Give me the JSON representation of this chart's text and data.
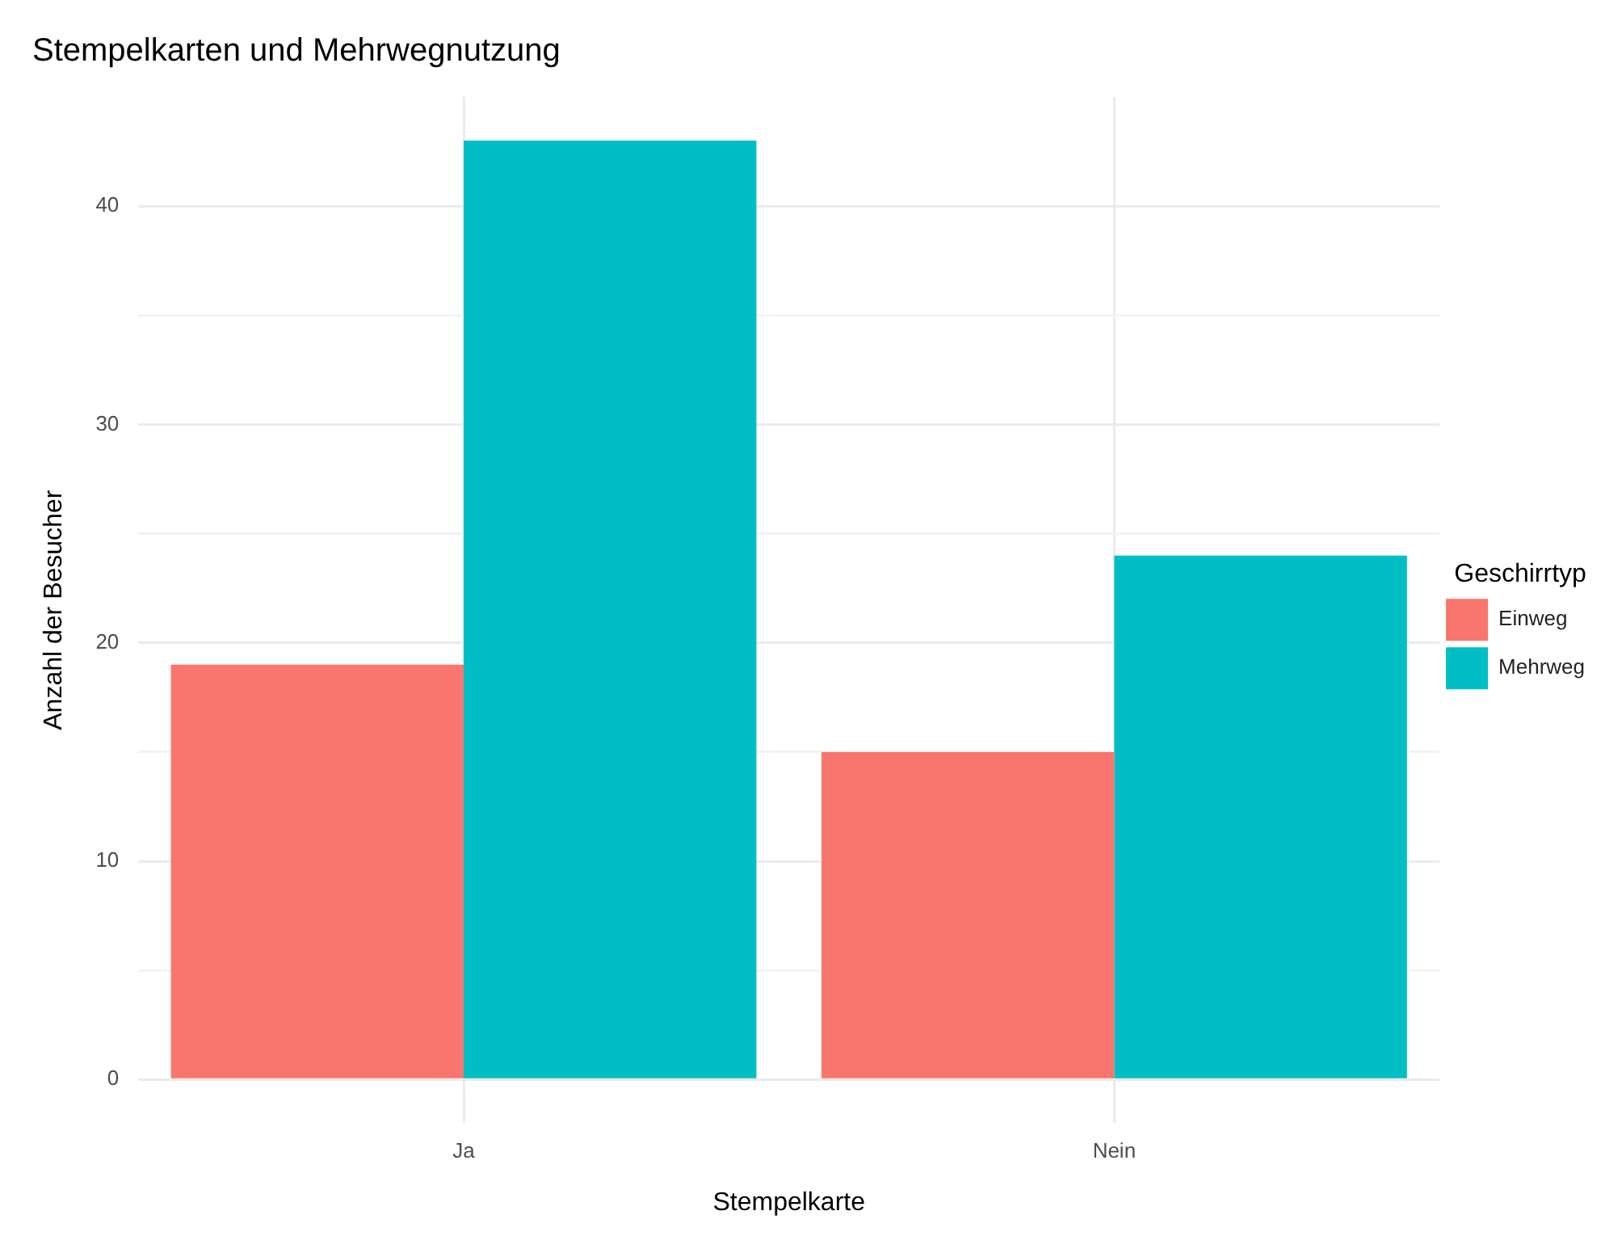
{
  "chart_data": {
    "type": "bar",
    "title": "Stempelkarten und Mehrwegnutzung",
    "xlabel": "Stempelkarte",
    "ylabel": "Anzahl der Besucher",
    "legend_title": "Geschirrtyp",
    "categories": [
      "Ja",
      "Nein"
    ],
    "series": [
      {
        "name": "Einweg",
        "color": "#f8766d",
        "values": [
          19,
          15
        ]
      },
      {
        "name": "Mehrweg",
        "color": "#00bfc4",
        "values": [
          43,
          24
        ]
      }
    ],
    "ylim": [
      -2,
      45
    ],
    "yticks": [
      0,
      {
        "value": 5,
        "label": null
      },
      10,
      {
        "value": 15,
        "label": null
      },
      20,
      {
        "value": 25,
        "label": null
      },
      30,
      {
        "value": 35,
        "label": null
      },
      40
    ],
    "grid": true,
    "legend": "right"
  }
}
